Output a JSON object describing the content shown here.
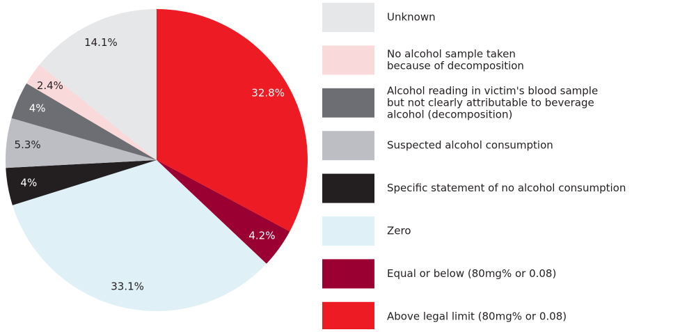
{
  "chart_data": {
    "type": "pie",
    "categories": [
      [
        "Unknown"
      ],
      [
        "No alcohol sample taken",
        "because of decomposition"
      ],
      [
        "Alcohol reading in victim's blood sample",
        "but not clearly attributable to beverage",
        "alcohol (decomposition)"
      ],
      [
        "Suspected alcohol consumption"
      ],
      [
        "Specific statement of no alcohol consumption"
      ],
      [
        "Zero"
      ],
      [
        "Equal or below (80mg% or 0.08)"
      ],
      [
        "Above legal limit (80mg% or 0.08)"
      ]
    ],
    "values": [
      14.1,
      2.4,
      4,
      5.3,
      4,
      33.1,
      4.2,
      32.8
    ],
    "value_labels": [
      "14.1%",
      "2.4%",
      "4%",
      "5.3%",
      "4%",
      "33.1%",
      "4.2%",
      "32.8%"
    ],
    "colors": [
      "#e6e7e8",
      "#f9d9d9",
      "#6d6e73",
      "#bcbec3",
      "#231f20",
      "#dff0f7",
      "#9b0033",
      "#ed1c24"
    ]
  }
}
